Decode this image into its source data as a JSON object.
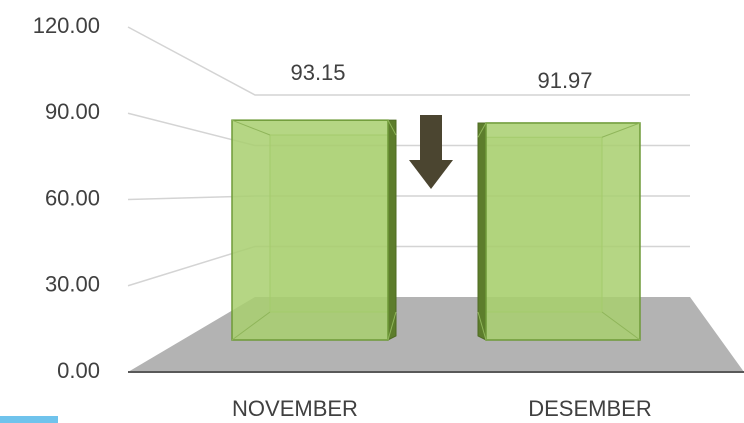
{
  "chart_data": {
    "type": "bar3d",
    "categories": [
      "NOVEMBER",
      "DESEMBER"
    ],
    "values": [
      93.15,
      91.97
    ],
    "value_labels": [
      "93.15",
      "91.97"
    ],
    "color": "#a8cf6e",
    "ylim": [
      0,
      120
    ],
    "yticks": [
      {
        "value": 0,
        "label": "0.00"
      },
      {
        "value": 30,
        "label": "30.00"
      },
      {
        "value": 60,
        "label": "60.00"
      },
      {
        "value": 90,
        "label": "90.00"
      },
      {
        "value": 120,
        "label": "120.00"
      }
    ],
    "grid": true
  }
}
